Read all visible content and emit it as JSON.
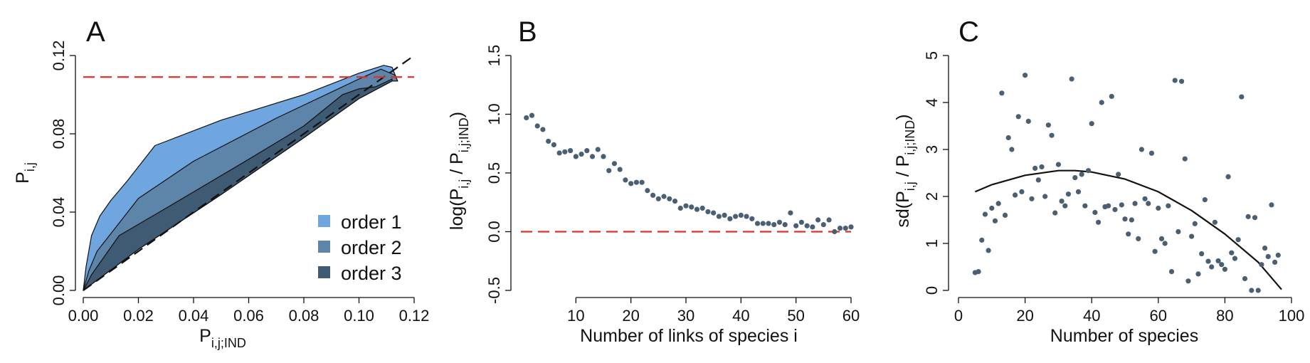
{
  "chart_data": [
    {
      "type": "area",
      "panel_label": "A",
      "xlabel": "P",
      "xlabel_sub": "i,j;IND",
      "ylabel": "P",
      "ylabel_sub": "i,j",
      "xlim": [
        0,
        0.12
      ],
      "ylim": [
        0,
        0.12
      ],
      "x_ticks": [
        0,
        0.02,
        0.04,
        0.06,
        0.08,
        0.1,
        0.12
      ],
      "x_tick_labels": [
        "0.00",
        "0.02",
        "0.04",
        "0.06",
        "0.08",
        "0.10",
        "0.12"
      ],
      "y_ticks": [
        0,
        0.04,
        0.08,
        0.12
      ],
      "y_tick_labels": [
        "0.00",
        "0.04",
        "0.08",
        "0.12"
      ],
      "grid": false,
      "legend_position": "bottom-right",
      "series": [
        {
          "name": "order 1",
          "color": "#6fa6df",
          "upper": [
            [
              0,
              0
            ],
            [
              0.001,
              0.012
            ],
            [
              0.003,
              0.028
            ],
            [
              0.006,
              0.038
            ],
            [
              0.01,
              0.046
            ],
            [
              0.016,
              0.056
            ],
            [
              0.026,
              0.074
            ],
            [
              0.05,
              0.087
            ],
            [
              0.08,
              0.1
            ],
            [
              0.1,
              0.111
            ],
            [
              0.109,
              0.115
            ],
            [
              0.112,
              0.114
            ],
            [
              0.114,
              0.107
            ]
          ],
          "lower": [
            [
              0,
              0
            ],
            [
              0.02,
              0.021
            ],
            [
              0.05,
              0.049
            ],
            [
              0.08,
              0.078
            ],
            [
              0.1,
              0.098
            ],
            [
              0.112,
              0.107
            ],
            [
              0.114,
              0.107
            ]
          ]
        },
        {
          "name": "order 2",
          "color": "#5d84a9",
          "upper": [
            [
              0,
              0
            ],
            [
              0.002,
              0.01
            ],
            [
              0.005,
              0.02
            ],
            [
              0.01,
              0.029
            ],
            [
              0.02,
              0.047
            ],
            [
              0.04,
              0.066
            ],
            [
              0.07,
              0.088
            ],
            [
              0.1,
              0.108
            ],
            [
              0.108,
              0.113
            ],
            [
              0.113,
              0.11
            ],
            [
              0.114,
              0.107
            ]
          ],
          "lower": [
            [
              0,
              0
            ],
            [
              0.02,
              0.021
            ],
            [
              0.05,
              0.049
            ],
            [
              0.08,
              0.078
            ],
            [
              0.1,
              0.098
            ],
            [
              0.112,
              0.107
            ],
            [
              0.114,
              0.107
            ]
          ]
        },
        {
          "name": "order 3",
          "color": "#3f5a73",
          "upper": [
            [
              0,
              0
            ],
            [
              0.003,
              0.008
            ],
            [
              0.007,
              0.016
            ],
            [
              0.013,
              0.028
            ],
            [
              0.03,
              0.042
            ],
            [
              0.06,
              0.067
            ],
            [
              0.08,
              0.084
            ],
            [
              0.094,
              0.1
            ],
            [
              0.1,
              0.103
            ],
            [
              0.106,
              0.104
            ],
            [
              0.112,
              0.108
            ]
          ],
          "lower": [
            [
              0,
              0
            ],
            [
              0.02,
              0.021
            ],
            [
              0.05,
              0.049
            ],
            [
              0.08,
              0.078
            ],
            [
              0.1,
              0.098
            ],
            [
              0.112,
              0.107
            ]
          ]
        }
      ],
      "reference_lines": [
        {
          "kind": "diagonal",
          "from": [
            0,
            0
          ],
          "to": [
            0.12,
            0.12
          ],
          "color": "#111111",
          "style": "dashed"
        },
        {
          "kind": "horizontal",
          "y": 0.109,
          "color": "#e0312b",
          "style": "dashed"
        }
      ]
    },
    {
      "type": "scatter",
      "panel_label": "B",
      "xlabel": "Number of links of species i",
      "ylabel_parts": [
        "log(P",
        "i,j",
        " / P",
        "i,j;IND",
        ")"
      ],
      "xlim": [
        0,
        60
      ],
      "ylim": [
        -0.5,
        1.5
      ],
      "x_ticks": [
        10,
        20,
        30,
        40,
        50,
        60
      ],
      "x_tick_labels": [
        "10",
        "20",
        "30",
        "40",
        "50",
        "60"
      ],
      "y_ticks": [
        -0.5,
        0,
        0.5,
        1,
        1.5
      ],
      "y_tick_labels": [
        "-0.5",
        "0.0",
        "0.5",
        "1.0",
        "1.5"
      ],
      "grid": false,
      "point_color": "#4a6072",
      "reference_lines": [
        {
          "kind": "horizontal",
          "y": 0,
          "color": "#e0312b",
          "style": "dashed"
        }
      ],
      "x": [
        1,
        2,
        3,
        4,
        5,
        6,
        7,
        8,
        9,
        10,
        11,
        12,
        13,
        14,
        15,
        16,
        17,
        18,
        19,
        20,
        21,
        22,
        23,
        24,
        25,
        26,
        27,
        28,
        29,
        30,
        31,
        32,
        33,
        34,
        35,
        36,
        37,
        38,
        39,
        40,
        41,
        42,
        43,
        44,
        45,
        46,
        47,
        48,
        49,
        50,
        51,
        52,
        53,
        54,
        55,
        56,
        57,
        58,
        59,
        60
      ],
      "y": [
        0.97,
        0.99,
        0.9,
        0.87,
        0.77,
        0.74,
        0.67,
        0.68,
        0.69,
        0.64,
        0.66,
        0.69,
        0.64,
        0.7,
        0.64,
        0.52,
        0.58,
        0.53,
        0.44,
        0.41,
        0.42,
        0.42,
        0.35,
        0.31,
        0.28,
        0.3,
        0.28,
        0.26,
        0.2,
        0.22,
        0.21,
        0.19,
        0.2,
        0.17,
        0.16,
        0.13,
        0.14,
        0.11,
        0.13,
        0.14,
        0.13,
        0.11,
        0.07,
        0.07,
        0.07,
        0.06,
        0.08,
        0.06,
        0.16,
        0.05,
        0.08,
        0.05,
        0.04,
        0.1,
        0.06,
        0.1,
        0.0,
        0.03,
        0.03,
        0.04
      ]
    },
    {
      "type": "scatter",
      "panel_label": "C",
      "xlabel": "Number of species",
      "ylabel_parts": [
        "sd(P",
        "i,j",
        " / P",
        "i,j;IND",
        ")"
      ],
      "xlim": [
        0,
        100
      ],
      "ylim": [
        0,
        5
      ],
      "x_ticks": [
        0,
        20,
        40,
        60,
        80,
        100
      ],
      "x_tick_labels": [
        "0",
        "20",
        "40",
        "60",
        "80",
        "100"
      ],
      "y_ticks": [
        0,
        1,
        2,
        3,
        4,
        5
      ],
      "y_tick_labels": [
        "0",
        "1",
        "2",
        "3",
        "4",
        "5"
      ],
      "grid": false,
      "point_color": "#4a6072",
      "fit_curve": {
        "type": "quadratic",
        "x": [
          5,
          10,
          20,
          30,
          35,
          40,
          50,
          60,
          70,
          80,
          90,
          97
        ],
        "y": [
          2.1,
          2.25,
          2.45,
          2.55,
          2.55,
          2.52,
          2.37,
          2.1,
          1.7,
          1.2,
          0.6,
          0.02
        ]
      },
      "x": [
        5,
        6,
        7,
        8,
        9,
        10,
        11,
        12,
        13,
        14,
        15,
        16,
        17,
        18,
        19,
        20,
        21,
        22,
        23,
        24,
        25,
        26,
        27,
        28,
        29,
        30,
        31,
        32,
        33,
        34,
        35,
        36,
        37,
        38,
        39,
        40,
        41,
        42,
        43,
        44,
        45,
        46,
        47,
        48,
        49,
        50,
        51,
        52,
        53,
        54,
        55,
        56,
        57,
        58,
        59,
        60,
        61,
        62,
        63,
        64,
        65,
        66,
        67,
        68,
        69,
        70,
        71,
        72,
        73,
        74,
        75,
        76,
        77,
        78,
        79,
        80,
        81,
        82,
        83,
        84,
        85,
        86,
        87,
        88,
        89,
        90,
        91,
        92,
        93,
        94,
        95,
        96
      ],
      "y": [
        0.38,
        0.4,
        1.07,
        1.62,
        0.85,
        1.75,
        1.48,
        1.85,
        4.2,
        1.6,
        3.25,
        3.0,
        2.03,
        3.7,
        2.1,
        4.58,
        3.6,
        1.95,
        2.6,
        2.35,
        2.63,
        2.0,
        3.52,
        3.3,
        1.65,
        2.68,
        1.9,
        1.8,
        2.05,
        4.5,
        2.4,
        2.1,
        2.47,
        1.8,
        2.55,
        3.55,
        1.66,
        1.45,
        4.0,
        1.78,
        1.8,
        4.13,
        1.72,
        2.47,
        1.82,
        1.52,
        1.2,
        1.5,
        1.85,
        1.1,
        3.0,
        1.95,
        1.85,
        2.92,
        0.83,
        1.75,
        1.1,
        1.0,
        1.8,
        0.4,
        4.47,
        1.25,
        4.45,
        2.8,
        0.2,
        1.15,
        1.42,
        0.35,
        0.78,
        1.93,
        0.62,
        0.5,
        1.45,
        0.63,
        0.55,
        0.45,
        2.42,
        0.8,
        0.68,
        1.08,
        4.12,
        0.25,
        1.57,
        0.0,
        1.55,
        0.0,
        0.55,
        0.9,
        0.72,
        1.82,
        0.6,
        0.75
      ]
    }
  ]
}
